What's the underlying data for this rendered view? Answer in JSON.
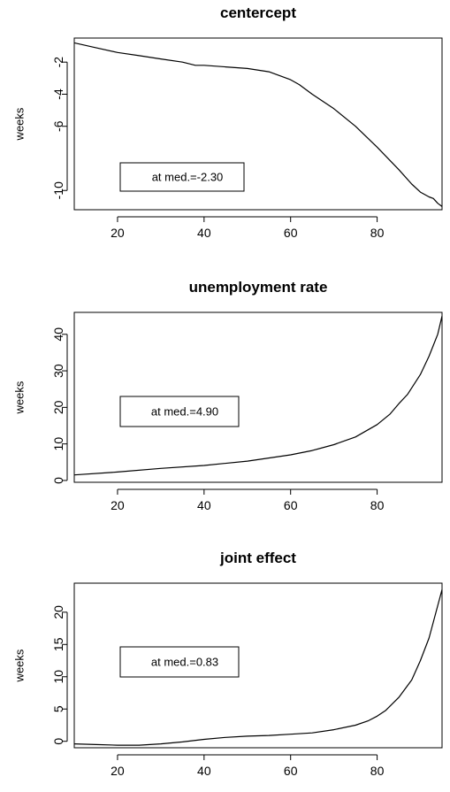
{
  "chart_data": [
    {
      "type": "line",
      "title": "centercept",
      "ylabel": "weeks",
      "xlabel": "",
      "xlim": [
        10,
        95
      ],
      "ylim": [
        -11.2,
        -0.5
      ],
      "xticks": [
        20,
        40,
        60,
        80
      ],
      "xtick_labels": [
        "20",
        "40",
        "60",
        "80"
      ],
      "yticks": [
        -2,
        -4,
        -6,
        -10
      ],
      "ytick_labels": [
        "-2",
        "-4",
        "-6",
        "-10"
      ],
      "annotation": "at med.=-2.30",
      "series": [
        {
          "x": [
            10,
            15,
            20,
            25,
            30,
            35,
            38,
            40,
            45,
            50,
            55,
            60,
            62,
            65,
            70,
            75,
            80,
            85,
            88,
            90,
            92,
            93,
            94,
            95
          ],
          "y": [
            -0.8,
            -1.1,
            -1.4,
            -1.6,
            -1.8,
            -2.0,
            -2.2,
            -2.2,
            -2.3,
            -2.4,
            -2.6,
            -3.1,
            -3.4,
            -4.0,
            -4.9,
            -6.0,
            -7.3,
            -8.7,
            -9.6,
            -10.1,
            -10.4,
            -10.5,
            -10.8,
            -11.0
          ]
        }
      ]
    },
    {
      "type": "line",
      "title": "unemployment rate",
      "ylabel": "weeks",
      "xlabel": "",
      "xlim": [
        10,
        95
      ],
      "ylim": [
        -0.5,
        46
      ],
      "xticks": [
        20,
        40,
        60,
        80
      ],
      "xtick_labels": [
        "20",
        "40",
        "60",
        "80"
      ],
      "yticks": [
        0,
        10,
        20,
        30,
        40
      ],
      "ytick_labels": [
        "0",
        "10",
        "20",
        "30",
        "40"
      ],
      "annotation": "at med.=4.90",
      "series": [
        {
          "x": [
            10,
            20,
            30,
            40,
            50,
            60,
            65,
            70,
            75,
            80,
            83,
            85,
            87,
            90,
            92,
            94,
            95
          ],
          "y": [
            1.5,
            2.3,
            3.3,
            4.1,
            5.3,
            7.0,
            8.2,
            9.8,
            11.9,
            15.3,
            18.2,
            21.0,
            23.5,
            29.0,
            34.0,
            40.0,
            45.0
          ]
        }
      ]
    },
    {
      "type": "line",
      "title": "joint effect",
      "ylabel": "weeks",
      "xlabel": "",
      "xlim": [
        10,
        95
      ],
      "ylim": [
        -1,
        24.5
      ],
      "xticks": [
        20,
        40,
        60,
        80
      ],
      "xtick_labels": [
        "20",
        "40",
        "60",
        "80"
      ],
      "yticks": [
        0,
        5,
        10,
        15,
        20
      ],
      "ytick_labels": [
        "0",
        "5",
        "10",
        "15",
        "20"
      ],
      "annotation": "at med.=0.83",
      "series": [
        {
          "x": [
            10,
            15,
            20,
            25,
            30,
            35,
            40,
            45,
            50,
            55,
            60,
            65,
            70,
            75,
            78,
            80,
            82,
            85,
            88,
            90,
            92,
            94,
            95
          ],
          "y": [
            -0.4,
            -0.5,
            -0.6,
            -0.6,
            -0.4,
            -0.1,
            0.3,
            0.6,
            0.8,
            0.9,
            1.1,
            1.3,
            1.8,
            2.5,
            3.2,
            3.9,
            4.8,
            6.8,
            9.5,
            12.5,
            16.0,
            21.0,
            23.5
          ]
        }
      ]
    }
  ]
}
